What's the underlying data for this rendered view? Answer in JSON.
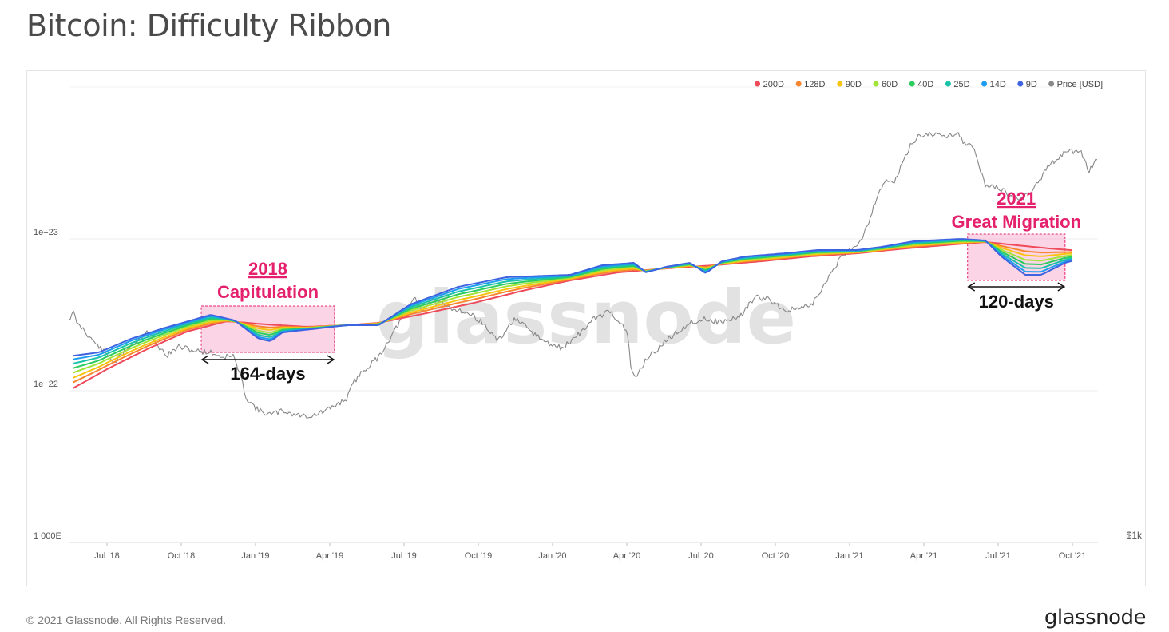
{
  "page": {
    "title": "Bitcoin: Difficulty Ribbon",
    "footer": "© 2021 Glassnode. All Rights Reserved.",
    "brand": "glassnode",
    "watermark": "glassnode"
  },
  "chart_data": {
    "type": "line",
    "title": "Bitcoin: Difficulty Ribbon",
    "x_ticks": [
      "Jul '18",
      "Oct '18",
      "Jan '19",
      "Apr '19",
      "Jul '19",
      "Oct '19",
      "Jan '20",
      "Apr '20",
      "Jul '20",
      "Oct '20",
      "Jan '21",
      "Apr '21",
      "Jul '21",
      "Oct '21"
    ],
    "x_range": [
      "2018-05-20",
      "2021-10-01"
    ],
    "y_left": {
      "scale": "log",
      "ticks": [
        "1e+23",
        "1e+22",
        "1 000E"
      ]
    },
    "y_right": {
      "scale": "log",
      "ticks": [
        "$1k"
      ]
    },
    "grid": true,
    "legend_position": "top-right",
    "series": [
      {
        "name": "200D",
        "color": "#ef4a5a"
      },
      {
        "name": "128D",
        "color": "#f7862f"
      },
      {
        "name": "90D",
        "color": "#f8c40f"
      },
      {
        "name": "60D",
        "color": "#a3e43a"
      },
      {
        "name": "40D",
        "color": "#2dcc5e"
      },
      {
        "name": "25D",
        "color": "#1ac3a8"
      },
      {
        "name": "14D",
        "color": "#1e9df0"
      },
      {
        "name": "9D",
        "color": "#3e63e0"
      },
      {
        "name": "Price [USD]",
        "color": "#888888"
      }
    ],
    "annotations": [
      {
        "year": "2018",
        "label": "Capitulation",
        "duration": "164-days",
        "start": "2018-10-25",
        "end": "2019-04-07",
        "color": "#e5206d"
      },
      {
        "year": "2021",
        "label": "Great Migration",
        "duration": "120-days",
        "start": "2021-05-25",
        "end": "2021-09-22",
        "color": "#e5206d"
      }
    ]
  }
}
